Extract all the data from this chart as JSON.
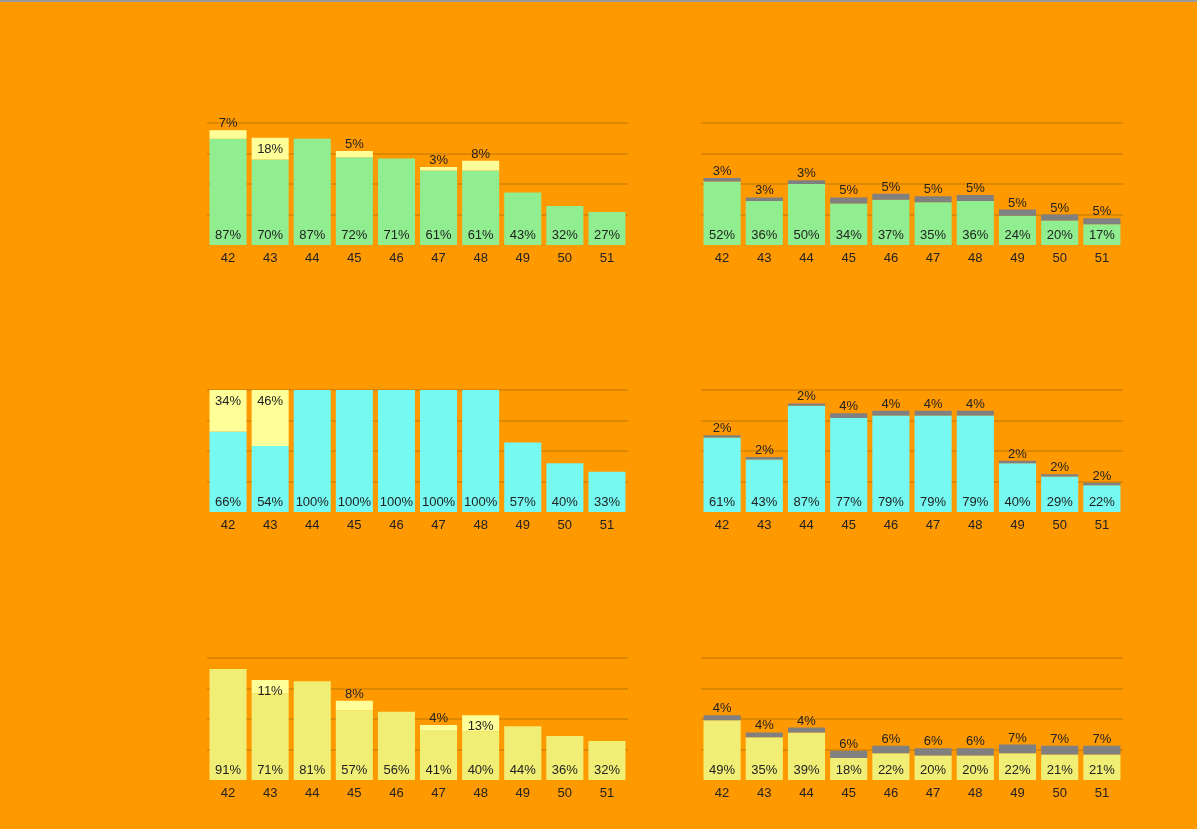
{
  "chart_data": [
    {
      "type": "bar",
      "stacked": true,
      "categories": [
        "42",
        "43",
        "44",
        "45",
        "46",
        "47",
        "48",
        "49",
        "50",
        "51"
      ],
      "ylim": [
        0,
        100
      ],
      "yticks": [
        {
          "value": 25,
          "label": null
        },
        {
          "value": 50,
          "label": null
        },
        {
          "value": 75,
          "label": null
        },
        {
          "value": 100,
          "label": null
        }
      ],
      "grid": "y",
      "tick_labels": "x",
      "series": [
        {
          "color": "#90ee90",
          "values": [
            87,
            70,
            87,
            72,
            71,
            61,
            61,
            43,
            32,
            27
          ],
          "value_labels": [
            "87%",
            "70%",
            "87%",
            "72%",
            "71%",
            "61%",
            "61%",
            "43%",
            "32%",
            "27%"
          ]
        },
        {
          "color": "#ffff99",
          "values": [
            7,
            18,
            null,
            5,
            null,
            3,
            8,
            null,
            null,
            null
          ],
          "value_labels": [
            "7%",
            "18%",
            null,
            "5%",
            null,
            "3%",
            "8%",
            null,
            null,
            null
          ]
        }
      ]
    },
    {
      "type": "bar",
      "stacked": true,
      "categories": [
        "42",
        "43",
        "44",
        "45",
        "46",
        "47",
        "48",
        "49",
        "50",
        "51"
      ],
      "ylim": [
        0,
        100
      ],
      "yticks": [
        {
          "value": 25,
          "label": null
        },
        {
          "value": 50,
          "label": null
        },
        {
          "value": 75,
          "label": null
        },
        {
          "value": 100,
          "label": null
        }
      ],
      "grid": "y",
      "tick_labels": "x",
      "series": [
        {
          "color": "#90ee90",
          "values": [
            52,
            36,
            50,
            34,
            37,
            35,
            36,
            24,
            20,
            17
          ],
          "value_labels": [
            "52%",
            "36%",
            "50%",
            "34%",
            "37%",
            "35%",
            "36%",
            "24%",
            "20%",
            "17%"
          ]
        },
        {
          "color": "#808080",
          "values": [
            3,
            3,
            3,
            5,
            5,
            5,
            5,
            5,
            5,
            5
          ],
          "value_labels": [
            "3%",
            "3%",
            "3%",
            "5%",
            "5%",
            "5%",
            "5%",
            "5%",
            "5%",
            "5%"
          ]
        }
      ]
    },
    {
      "type": "bar",
      "stacked": true,
      "categories": [
        "42",
        "43",
        "44",
        "45",
        "46",
        "47",
        "48",
        "49",
        "50",
        "51"
      ],
      "ylim": [
        0,
        100
      ],
      "yticks": [
        {
          "value": 25,
          "label": null
        },
        {
          "value": 50,
          "label": null
        },
        {
          "value": 75,
          "label": null
        },
        {
          "value": 100,
          "label": null
        }
      ],
      "grid": "y",
      "tick_labels": "x",
      "series": [
        {
          "color": "#75f9f0",
          "values": [
            66,
            54,
            100,
            100,
            100,
            100,
            100,
            57,
            40,
            33
          ],
          "value_labels": [
            "66%",
            "54%",
            "100%",
            "100%",
            "100%",
            "100%",
            "100%",
            "57%",
            "40%",
            "33%"
          ]
        },
        {
          "color": "#ffff99",
          "values": [
            34,
            46,
            null,
            null,
            null,
            null,
            null,
            null,
            null,
            null
          ],
          "value_labels": [
            "34%",
            "46%",
            null,
            null,
            null,
            null,
            null,
            null,
            null,
            null
          ]
        }
      ]
    },
    {
      "type": "bar",
      "stacked": true,
      "categories": [
        "42",
        "43",
        "44",
        "45",
        "46",
        "47",
        "48",
        "49",
        "50",
        "51"
      ],
      "ylim": [
        0,
        100
      ],
      "yticks": [
        {
          "value": 25,
          "label": null
        },
        {
          "value": 50,
          "label": null
        },
        {
          "value": 75,
          "label": null
        },
        {
          "value": 100,
          "label": null
        }
      ],
      "grid": "y",
      "tick_labels": "x",
      "series": [
        {
          "color": "#75f9f0",
          "values": [
            61,
            43,
            87,
            77,
            79,
            79,
            79,
            40,
            29,
            22
          ],
          "value_labels": [
            "61%",
            "43%",
            "87%",
            "77%",
            "79%",
            "79%",
            "79%",
            "40%",
            "29%",
            "22%"
          ]
        },
        {
          "color": "#808080",
          "values": [
            2,
            2,
            2,
            4,
            4,
            4,
            4,
            2,
            2,
            2
          ],
          "value_labels": [
            "2%",
            "2%",
            "2%",
            "4%",
            "4%",
            "4%",
            "4%",
            "2%",
            "2%",
            "2%"
          ]
        }
      ]
    },
    {
      "type": "bar",
      "stacked": true,
      "categories": [
        "42",
        "43",
        "44",
        "45",
        "46",
        "47",
        "48",
        "49",
        "50",
        "51"
      ],
      "ylim": [
        0,
        100
      ],
      "yticks": [
        {
          "value": 25,
          "label": null
        },
        {
          "value": 50,
          "label": null
        },
        {
          "value": 75,
          "label": null
        },
        {
          "value": 100,
          "label": null
        }
      ],
      "grid": "y",
      "tick_labels": "x",
      "series": [
        {
          "color": "#f0ee75",
          "values": [
            91,
            71,
            81,
            57,
            56,
            41,
            40,
            44,
            36,
            32
          ],
          "value_labels": [
            "91%",
            "71%",
            "81%",
            "57%",
            "56%",
            "41%",
            "40%",
            "44%",
            "36%",
            "32%"
          ]
        },
        {
          "color": "#ffff99",
          "values": [
            null,
            11,
            null,
            8,
            null,
            4,
            13,
            null,
            null,
            null
          ],
          "value_labels": [
            null,
            "11%",
            null,
            "8%",
            null,
            "4%",
            "13%",
            null,
            null,
            null
          ]
        }
      ]
    },
    {
      "type": "bar",
      "stacked": true,
      "categories": [
        "42",
        "43",
        "44",
        "45",
        "46",
        "47",
        "48",
        "49",
        "50",
        "51"
      ],
      "ylim": [
        0,
        100
      ],
      "yticks": [
        {
          "value": 25,
          "label": null
        },
        {
          "value": 50,
          "label": null
        },
        {
          "value": 75,
          "label": null
        },
        {
          "value": 100,
          "label": null
        }
      ],
      "grid": "y",
      "tick_labels": "x",
      "series": [
        {
          "color": "#f0ee75",
          "values": [
            49,
            35,
            39,
            18,
            22,
            20,
            20,
            22,
            21,
            21
          ],
          "value_labels": [
            "49%",
            "35%",
            "39%",
            "18%",
            "22%",
            "20%",
            "20%",
            "22%",
            "21%",
            "21%"
          ]
        },
        {
          "color": "#808080",
          "values": [
            4,
            4,
            4,
            6,
            6,
            6,
            6,
            7,
            7,
            7
          ],
          "value_labels": [
            "4%",
            "4%",
            "4%",
            "6%",
            "6%",
            "6%",
            "6%",
            "7%",
            "7%",
            "7%"
          ]
        }
      ]
    }
  ]
}
